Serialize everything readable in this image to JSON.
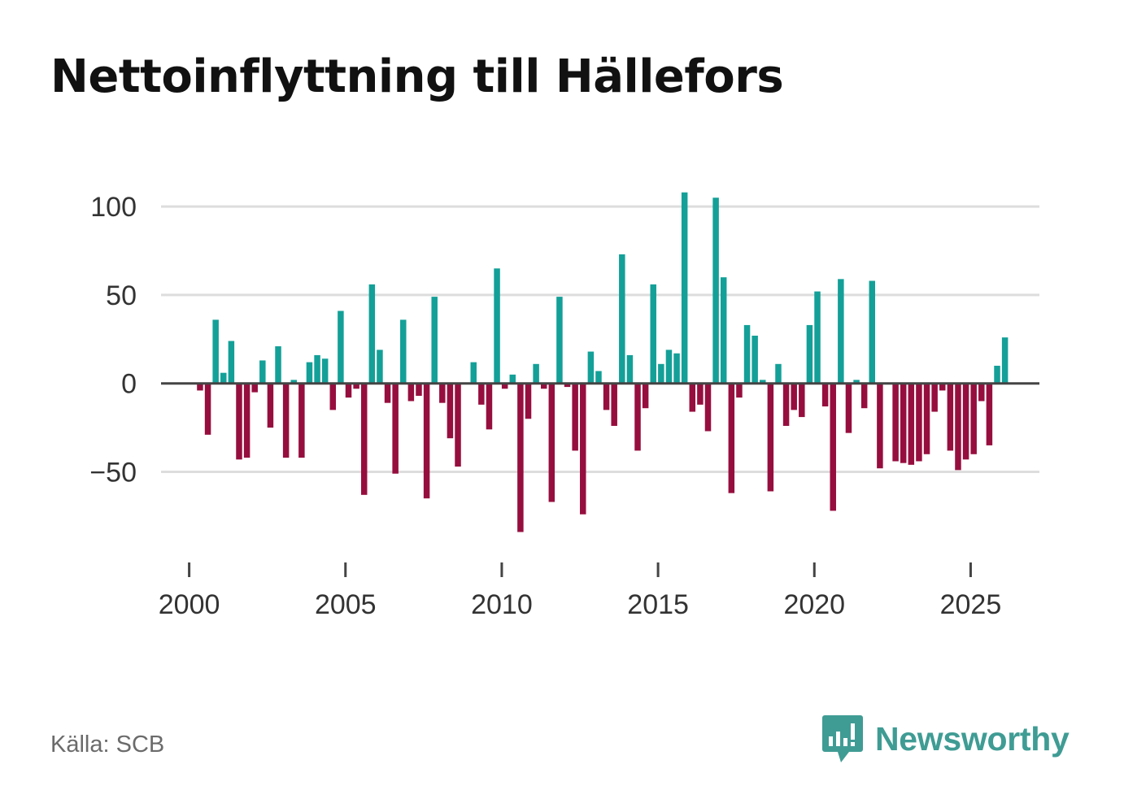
{
  "chart_data": {
    "type": "bar",
    "title": "Nettoinflyttning till Hällefors",
    "xlabel": "",
    "ylabel": "",
    "x_unit": "quarter",
    "x_start": 2000.0,
    "x_step": 0.25,
    "xlim": [
      1999.1,
      2027.2
    ],
    "ylim": [
      -98,
      112
    ],
    "x_ticks": [
      2000,
      2005,
      2010,
      2015,
      2020,
      2025
    ],
    "x_tick_labels": [
      "2000",
      "2005",
      "2010",
      "2015",
      "2020",
      "2025"
    ],
    "y_ticks": [
      100,
      50,
      0,
      -50
    ],
    "y_tick_labels": [
      "100",
      "50",
      "0",
      "−50"
    ],
    "grid": true,
    "colors": {
      "positive": "#13a098",
      "negative": "#960e3e",
      "grid": "#dddddd",
      "zero": "#444444"
    },
    "values": [
      0,
      -4,
      -29,
      36,
      6,
      24,
      -43,
      -42,
      -5,
      13,
      -25,
      21,
      -42,
      2,
      -42,
      12,
      16,
      14,
      -15,
      41,
      -8,
      -3,
      -63,
      56,
      19,
      -11,
      -51,
      36,
      -10,
      -7,
      -65,
      49,
      -11,
      -31,
      -47,
      0,
      12,
      -12,
      -26,
      65,
      -3,
      5,
      -84,
      -20,
      11,
      -3,
      -67,
      49,
      -2,
      -38,
      -74,
      18,
      7,
      -15,
      -24,
      73,
      16,
      -38,
      -14,
      56,
      11,
      19,
      17,
      108,
      -16,
      -12,
      -27,
      105,
      60,
      -62,
      -8,
      33,
      27,
      2,
      -61,
      11,
      -24,
      -15,
      -19,
      33,
      52,
      -13,
      -72,
      59,
      -28,
      2,
      -14,
      58,
      -48,
      0,
      -44,
      -45,
      -46,
      -44,
      -40,
      -16,
      -4,
      -38,
      -49,
      -43,
      -40,
      -10,
      -35,
      10,
      26
    ]
  },
  "footer": {
    "source": "Källa: SCB",
    "brand": "Newsworthy"
  }
}
